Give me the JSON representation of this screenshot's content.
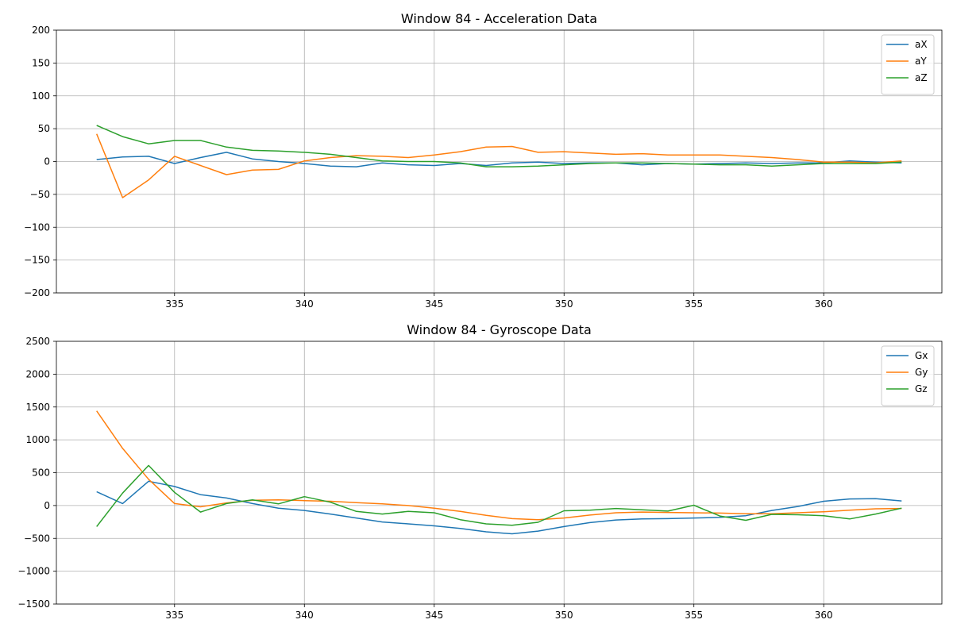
{
  "chart_data": [
    {
      "type": "line",
      "title": "Window 84 - Acceleration Data",
      "xlabel": "",
      "ylabel": "",
      "xlim": [
        330.45,
        364.55
      ],
      "ylim": [
        -200,
        200
      ],
      "xticks": [
        335,
        340,
        345,
        350,
        355,
        360
      ],
      "yticks": [
        -200,
        -150,
        -100,
        -50,
        0,
        50,
        100,
        150,
        200
      ],
      "ytick_labels": [
        "−200",
        "−150",
        "−100",
        "−50",
        "0",
        "50",
        "100",
        "150",
        "200"
      ],
      "grid": true,
      "legend_position": "top-right",
      "x": [
        332,
        333,
        334,
        335,
        336,
        337,
        338,
        339,
        340,
        341,
        342,
        343,
        344,
        345,
        346,
        347,
        348,
        349,
        350,
        351,
        352,
        353,
        354,
        355,
        356,
        357,
        358,
        359,
        360,
        361,
        362,
        363
      ],
      "series": [
        {
          "name": "aX",
          "color": "#1f77b4",
          "values": [
            3,
            7,
            8,
            -3,
            6,
            14,
            4,
            0,
            -3,
            -7,
            -8,
            -2,
            -5,
            -6,
            -3,
            -6,
            -2,
            -1,
            -3,
            -2,
            -2,
            -5,
            -3,
            -4,
            -3,
            -2,
            -3,
            -2,
            -2,
            1,
            -1,
            -2
          ]
        },
        {
          "name": "aY",
          "color": "#ff7f0e",
          "values": [
            42,
            -55,
            -28,
            8,
            -6,
            -20,
            -13,
            -12,
            1,
            6,
            9,
            8,
            6,
            10,
            15,
            22,
            23,
            14,
            15,
            13,
            11,
            12,
            10,
            10,
            10,
            8,
            6,
            3,
            -1,
            -1,
            -2,
            1
          ]
        },
        {
          "name": "aZ",
          "color": "#2ca02c",
          "values": [
            55,
            38,
            27,
            32,
            32,
            22,
            17,
            16,
            14,
            11,
            6,
            1,
            0,
            0,
            -2,
            -8,
            -8,
            -7,
            -5,
            -3,
            -2,
            -2,
            -3,
            -4,
            -5,
            -5,
            -7,
            -5,
            -3,
            -3,
            -3,
            -1
          ]
        }
      ]
    },
    {
      "type": "line",
      "title": "Window 84 - Gyroscope Data",
      "xlabel": "",
      "ylabel": "",
      "xlim": [
        330.45,
        364.55
      ],
      "ylim": [
        -1500,
        2500
      ],
      "xticks": [
        335,
        340,
        345,
        350,
        355,
        360
      ],
      "yticks": [
        -1500,
        -1000,
        -500,
        0,
        500,
        1000,
        1500,
        2000,
        2500
      ],
      "ytick_labels": [
        "−1500",
        "−1000",
        "−500",
        "0",
        "500",
        "1000",
        "1500",
        "2000",
        "2500"
      ],
      "grid": true,
      "legend_position": "top-right",
      "x": [
        332,
        333,
        334,
        335,
        336,
        337,
        338,
        339,
        340,
        341,
        342,
        343,
        344,
        345,
        346,
        347,
        348,
        349,
        350,
        351,
        352,
        353,
        354,
        355,
        356,
        357,
        358,
        359,
        360,
        361,
        362,
        363
      ],
      "series": [
        {
          "name": "Gx",
          "color": "#1f77b4",
          "values": [
            210,
            30,
            370,
            290,
            165,
            115,
            30,
            -40,
            -75,
            -130,
            -190,
            -250,
            -280,
            -310,
            -350,
            -400,
            -430,
            -390,
            -320,
            -260,
            -220,
            -205,
            -200,
            -190,
            -180,
            -155,
            -75,
            -15,
            65,
            100,
            105,
            70
          ]
        },
        {
          "name": "Gy",
          "color": "#ff7f0e",
          "values": [
            1440,
            870,
            400,
            30,
            -20,
            40,
            80,
            85,
            75,
            65,
            45,
            25,
            0,
            -40,
            -90,
            -150,
            -200,
            -215,
            -190,
            -145,
            -110,
            -100,
            -105,
            -110,
            -115,
            -125,
            -125,
            -110,
            -95,
            -70,
            -50,
            -45
          ]
        },
        {
          "name": "Gz",
          "color": "#2ca02c",
          "values": [
            -320,
            190,
            610,
            200,
            -100,
            30,
            85,
            25,
            135,
            50,
            -90,
            -130,
            -90,
            -110,
            -215,
            -280,
            -300,
            -255,
            -80,
            -70,
            -45,
            -65,
            -85,
            5,
            -160,
            -225,
            -135,
            -140,
            -155,
            -205,
            -130,
            -40
          ]
        }
      ]
    }
  ]
}
